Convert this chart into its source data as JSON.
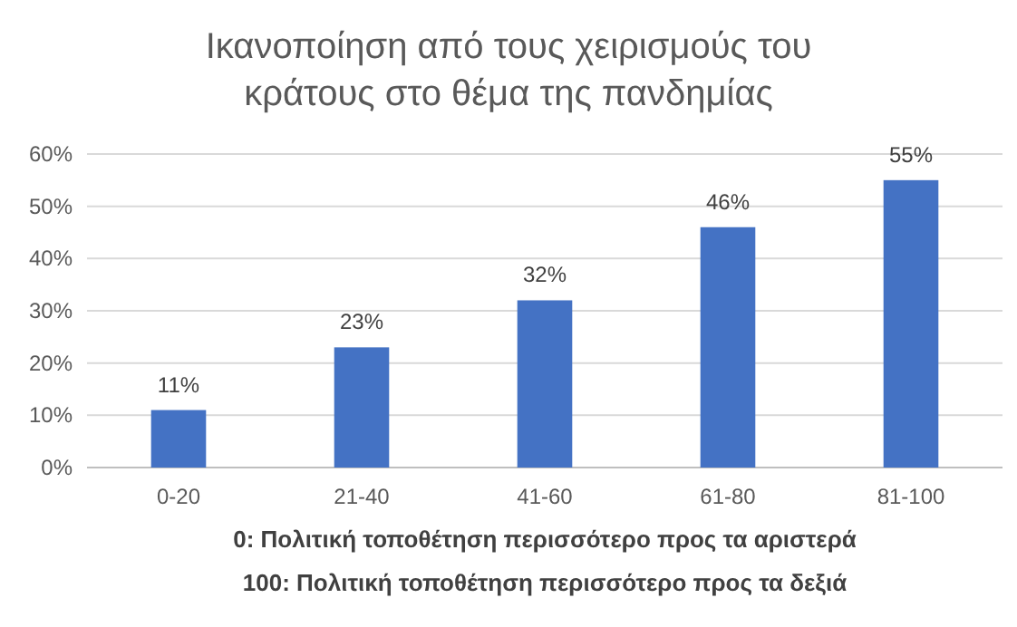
{
  "chart_data": {
    "type": "bar",
    "title": "Ικανοποίηση από τους χειρισμούς του κράτους στο θέμα της πανδημίας",
    "categories": [
      "0-20",
      "21-40",
      "41-60",
      "61-80",
      "81-100"
    ],
    "values": [
      11,
      23,
      32,
      46,
      55
    ],
    "color": "#4472c4",
    "ylim": [
      0,
      60
    ],
    "yticks": [
      {
        "value": 0,
        "label": "0%"
      },
      {
        "value": 10,
        "label": "10%"
      },
      {
        "value": 20,
        "label": "20%"
      },
      {
        "value": 30,
        "label": "30%"
      },
      {
        "value": 40,
        "label": "40%"
      },
      {
        "value": 50,
        "label": "50%"
      },
      {
        "value": 60,
        "label": "60%"
      }
    ],
    "grid": "y",
    "value_labels": [
      "11%",
      "23%",
      "32%",
      "46%",
      "55%"
    ],
    "annotations": [
      "0: Πολιτική τοποθέτηση περισσότερο προς τα αριστερά",
      "100: Πολιτική τοποθέτηση περισσότερο προς τα δεξιά"
    ]
  }
}
